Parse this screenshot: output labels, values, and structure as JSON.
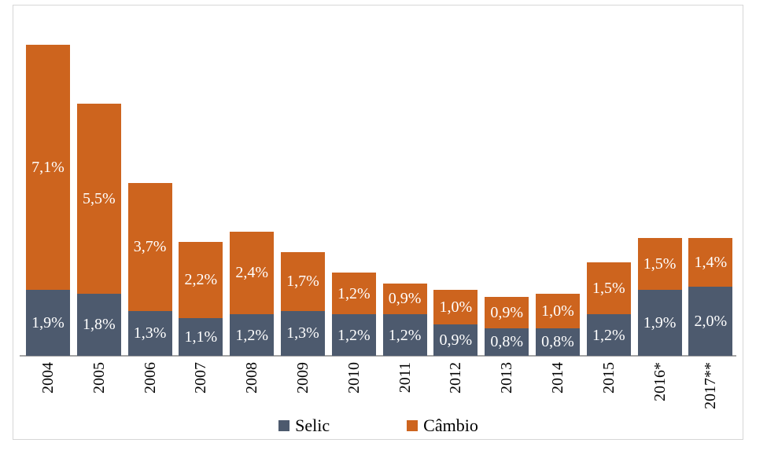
{
  "chart_data": {
    "type": "bar",
    "stacked": true,
    "title": "",
    "xlabel": "",
    "ylabel": "",
    "ylim": [
      0,
      9
    ],
    "grid": false,
    "legend_position": "bottom",
    "decimal_separator": ",",
    "value_suffix": "%",
    "categories": [
      "2004",
      "2005",
      "2006",
      "2007",
      "2008",
      "2009",
      "2010",
      "2011",
      "2012",
      "2013",
      "2014",
      "2015",
      "2016*",
      "2017**"
    ],
    "series": [
      {
        "name": "Selic",
        "key": "selic",
        "color": "#4D5A6E",
        "values": [
          1.9,
          1.8,
          1.3,
          1.1,
          1.2,
          1.3,
          1.2,
          1.2,
          0.9,
          0.8,
          0.8,
          1.2,
          1.9,
          2.0
        ],
        "labels": [
          "1,9%",
          "1,8%",
          "1,3%",
          "1,1%",
          "1,2%",
          "1,3%",
          "1,2%",
          "1,2%",
          "0,9%",
          "0,8%",
          "0,8%",
          "1,2%",
          "1,9%",
          "2,0%"
        ]
      },
      {
        "name": "Câmbio",
        "key": "cambio",
        "color": "#CD641E",
        "values": [
          7.1,
          5.5,
          3.7,
          2.2,
          2.4,
          1.7,
          1.2,
          0.9,
          1.0,
          0.9,
          1.0,
          1.5,
          1.5,
          1.4
        ],
        "labels": [
          "7,1%",
          "5,5%",
          "3,7%",
          "2,2%",
          "2,4%",
          "1,7%",
          "1,2%",
          "0,9%",
          "1,0%",
          "0,9%",
          "1,0%",
          "1,5%",
          "1,5%",
          "1,4%"
        ]
      }
    ]
  },
  "colors": {
    "background": "#FFFFFF",
    "border": "#D6D6D6",
    "axis_line": "#A5A5A5",
    "bar_label_text": "#FFFFFF",
    "year_label_text": "#000000"
  }
}
